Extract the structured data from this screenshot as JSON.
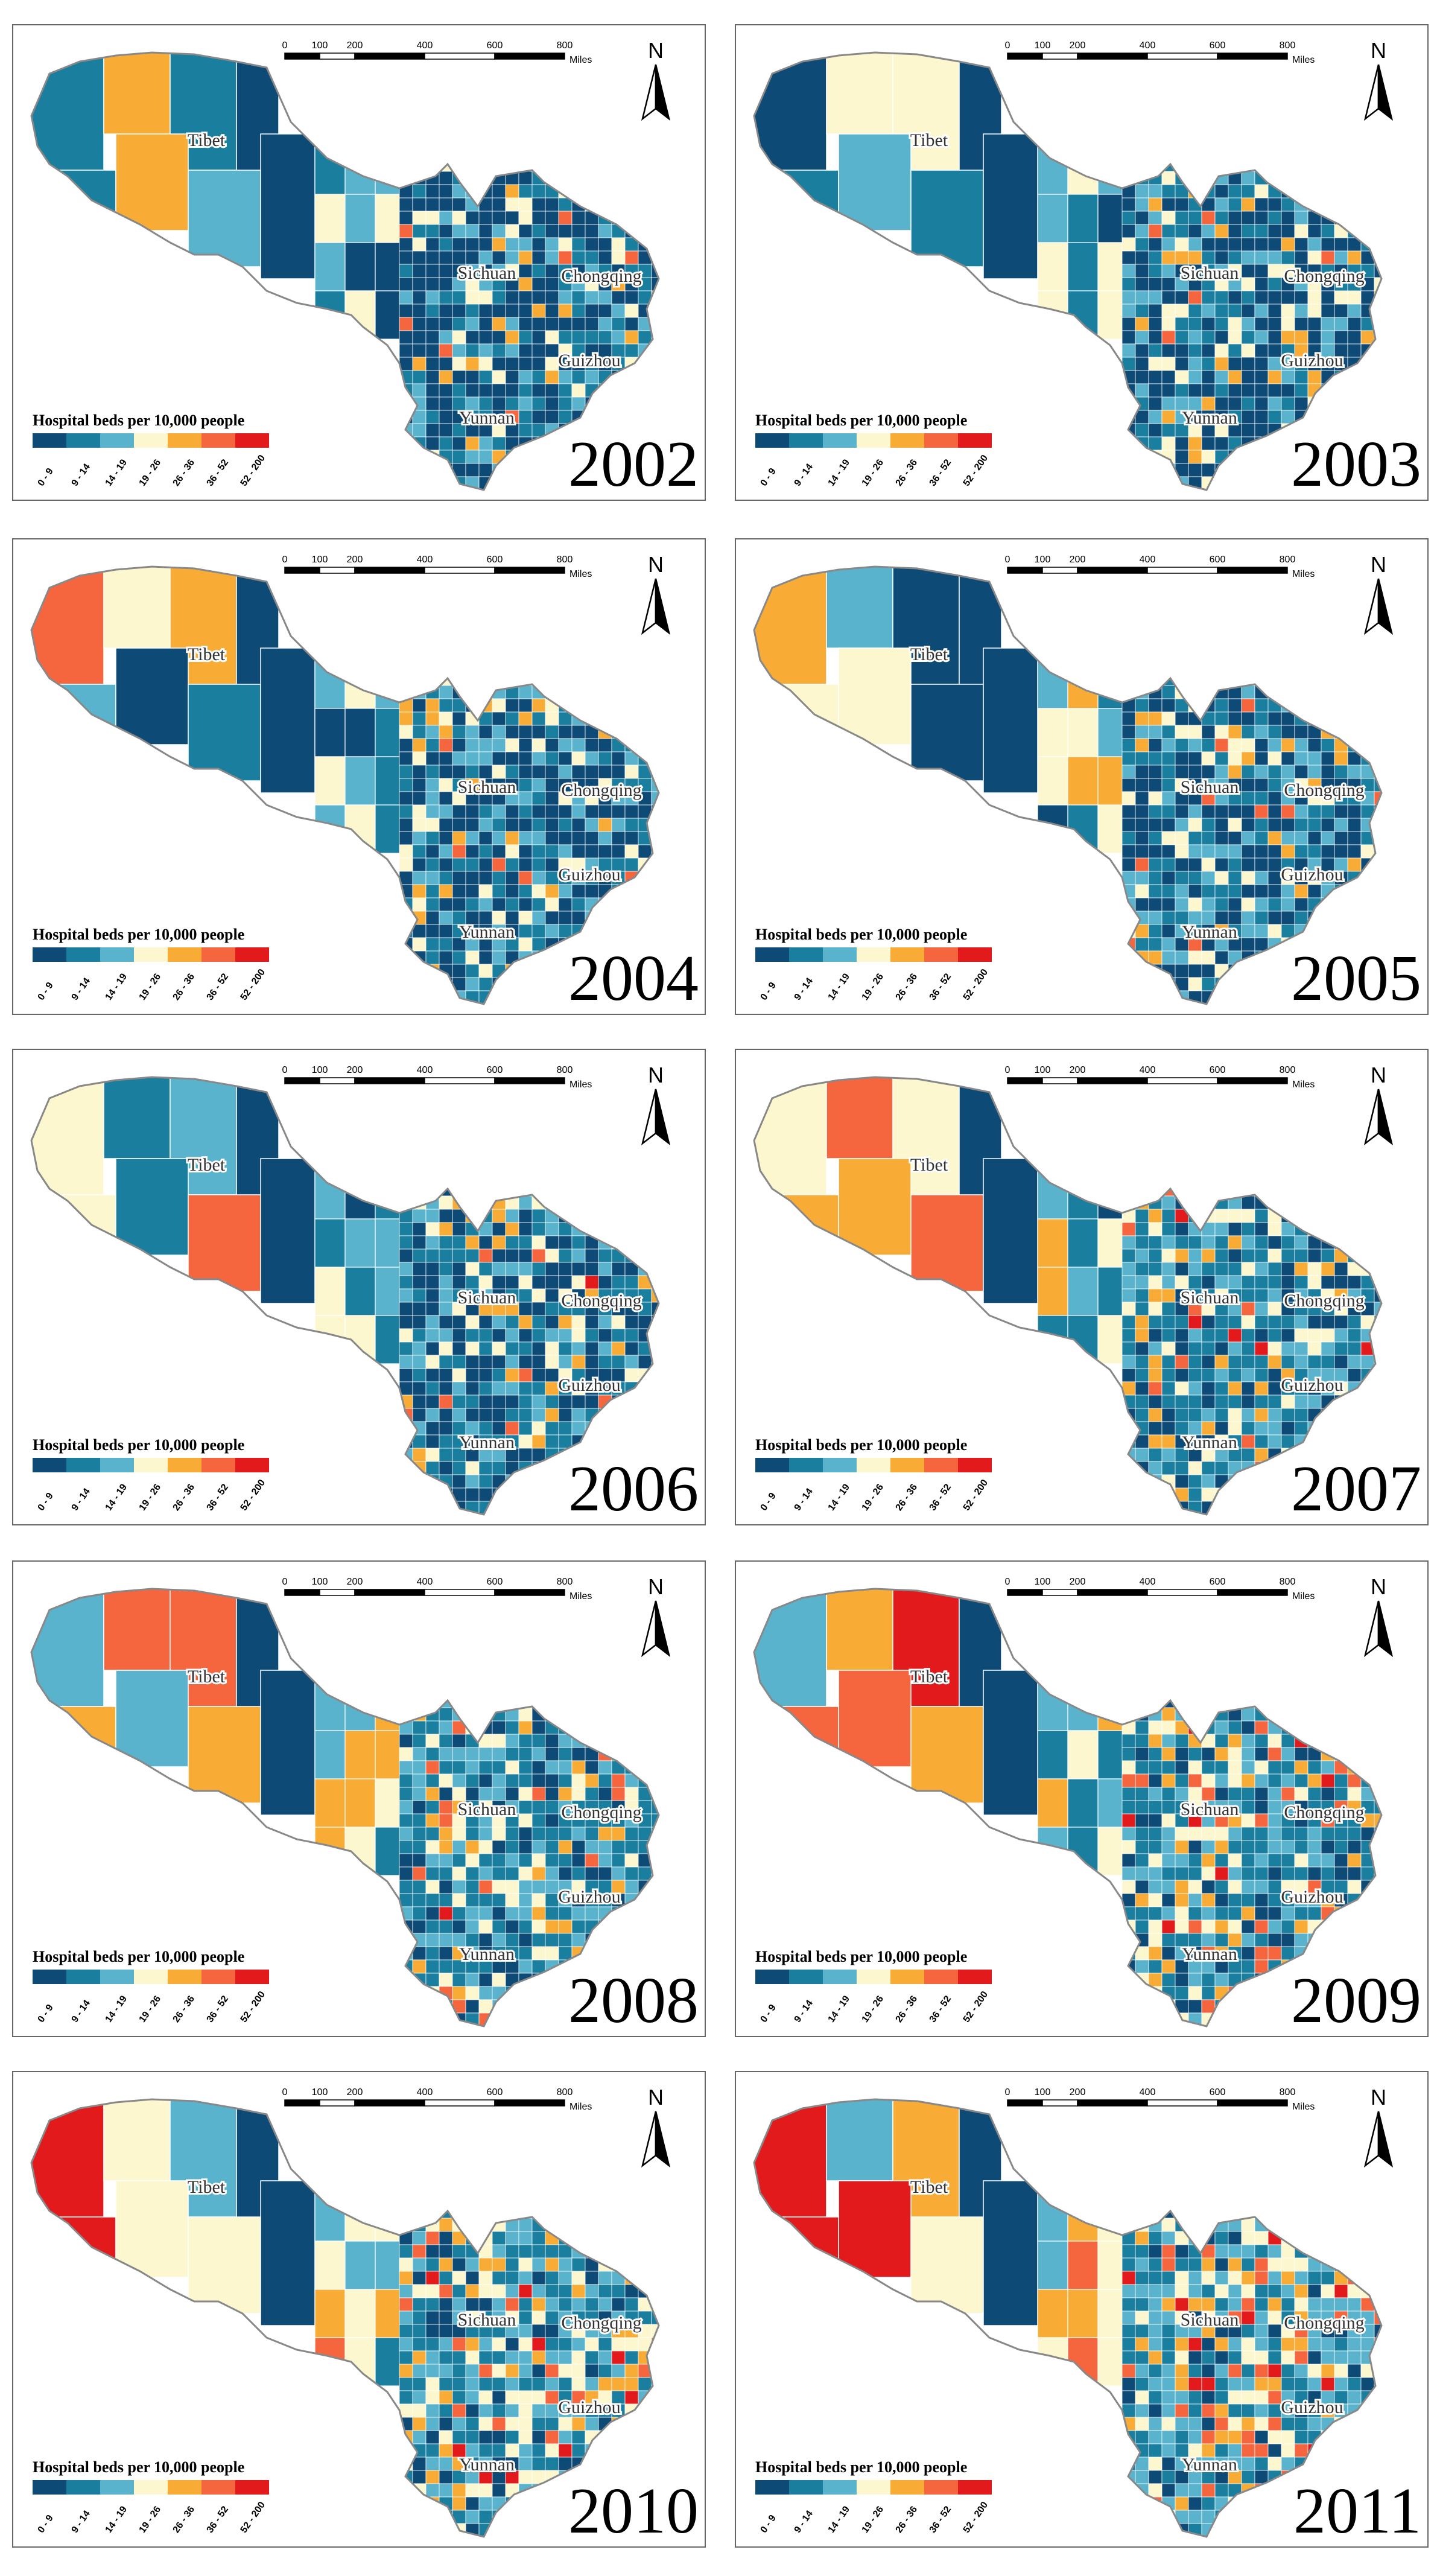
{
  "panels": [
    {
      "year": "2002"
    },
    {
      "year": "2003"
    },
    {
      "year": "2004"
    },
    {
      "year": "2005"
    },
    {
      "year": "2006"
    },
    {
      "year": "2007"
    },
    {
      "year": "2008"
    },
    {
      "year": "2009"
    },
    {
      "year": "2010"
    },
    {
      "year": "2011"
    }
  ],
  "legend": {
    "title": "Hospital beds per 10,000 people",
    "classes": [
      {
        "label": "0 - 9",
        "color": "#0d4a76"
      },
      {
        "label": "9 - 14",
        "color": "#1a7e9e"
      },
      {
        "label": "14 - 19",
        "color": "#5ab3cc"
      },
      {
        "label": "19 - 26",
        "color": "#fcf7cf"
      },
      {
        "label": "26 - 36",
        "color": "#f8ac35"
      },
      {
        "label": "36 - 52",
        "color": "#f5663f"
      },
      {
        "label": "52 - 200",
        "color": "#e31a1c"
      }
    ]
  },
  "scale": {
    "ticks": [
      "0",
      "100",
      "200",
      "400",
      "600",
      "800"
    ],
    "unit": "Miles"
  },
  "north_label": "N",
  "provinces": [
    "Tibet",
    "Sichuan",
    "Chongqing",
    "Guizhou",
    "Yunnan"
  ]
}
